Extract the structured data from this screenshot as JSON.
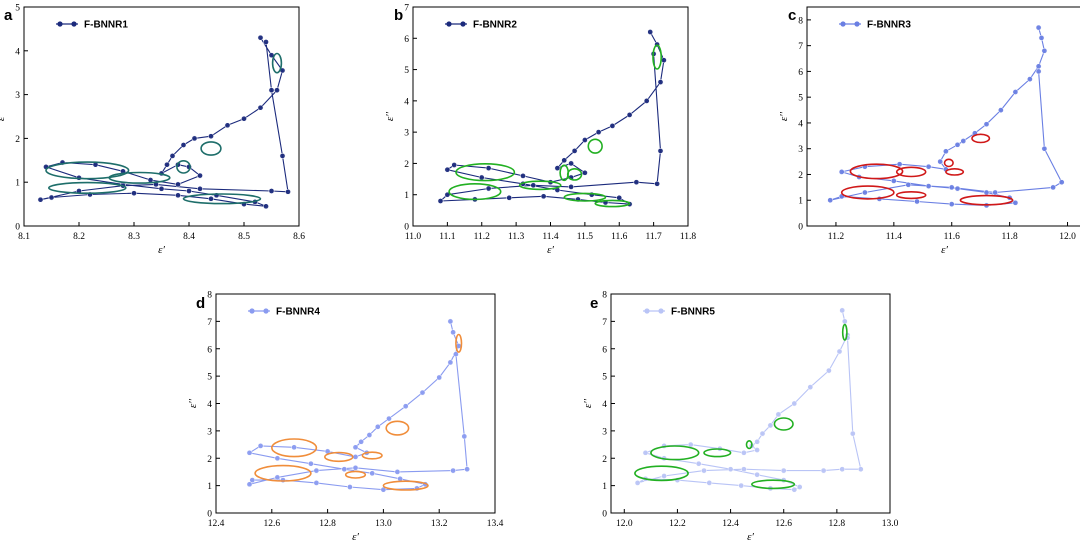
{
  "chart_data": [
    {
      "label": "a",
      "type": "line",
      "legend": "F-BNNR1",
      "xlabel": "ε′",
      "ylabel": "ε′′",
      "xlim": [
        8.1,
        8.6
      ],
      "ylim": [
        0,
        5
      ],
      "xticks": [
        "8.1",
        "8.2",
        "8.3",
        "8.4",
        "8.5",
        "8.6"
      ],
      "yticks": [
        "0",
        "1",
        "2",
        "3",
        "4",
        "5"
      ],
      "color": "#1b2a7c",
      "ring_color": "#1e6e6a",
      "x": [
        8.53,
        8.55,
        8.57,
        8.56,
        8.53,
        8.5,
        8.47,
        8.44,
        8.41,
        8.39,
        8.37,
        8.36,
        8.35,
        8.38,
        8.4,
        8.42,
        8.38,
        8.33,
        8.28,
        8.23,
        8.17,
        8.14,
        8.2,
        8.28,
        8.35,
        8.4,
        8.45,
        8.52,
        8.54,
        8.5,
        8.44,
        8.38,
        8.3,
        8.22,
        8.15,
        8.13,
        8.2,
        8.28,
        8.34,
        8.42,
        8.55,
        8.58,
        8.57,
        8.55,
        8.54
      ],
      "y": [
        4.3,
        3.9,
        3.55,
        3.1,
        2.7,
        2.45,
        2.3,
        2.05,
        2.0,
        1.85,
        1.6,
        1.4,
        1.2,
        1.4,
        1.35,
        1.15,
        0.95,
        1.05,
        1.25,
        1.4,
        1.45,
        1.35,
        1.1,
        0.95,
        0.85,
        0.8,
        0.7,
        0.55,
        0.45,
        0.5,
        0.62,
        0.7,
        0.75,
        0.72,
        0.65,
        0.6,
        0.8,
        0.92,
        0.95,
        0.85,
        0.8,
        0.78,
        1.6,
        3.1,
        4.2
      ],
      "rings": [
        [
          8.56,
          3.72,
          0.008,
          0.22
        ],
        [
          8.44,
          1.77,
          0.018,
          0.15
        ],
        [
          8.215,
          1.27,
          0.075,
          0.19
        ],
        [
          8.31,
          1.1,
          0.055,
          0.12
        ],
        [
          8.215,
          0.87,
          0.07,
          0.12
        ],
        [
          8.46,
          0.62,
          0.07,
          0.11
        ],
        [
          8.39,
          1.35,
          0.012,
          0.14
        ]
      ]
    },
    {
      "label": "b",
      "type": "line",
      "legend": "F-BNNR2",
      "xlabel": "ε′",
      "ylabel": "ε′′",
      "xlim": [
        11.0,
        11.8
      ],
      "ylim": [
        0,
        7
      ],
      "xticks": [
        "11.0",
        "11.1",
        "11.2",
        "11.3",
        "11.4",
        "11.5",
        "11.6",
        "11.7",
        "11.8"
      ],
      "yticks": [
        "0",
        "1",
        "2",
        "3",
        "4",
        "5",
        "6",
        "7"
      ],
      "color": "#1b2a7c",
      "ring_color": "#22b022",
      "x": [
        11.69,
        11.71,
        11.73,
        11.72,
        11.68,
        11.63,
        11.58,
        11.54,
        11.5,
        11.47,
        11.44,
        11.42,
        11.46,
        11.5,
        11.46,
        11.4,
        11.32,
        11.22,
        11.12,
        11.1,
        11.2,
        11.32,
        11.42,
        11.52,
        11.6,
        11.63,
        11.56,
        11.48,
        11.38,
        11.28,
        11.18,
        11.08,
        11.1,
        11.22,
        11.35,
        11.46,
        11.65,
        11.71,
        11.72,
        11.7
      ],
      "y": [
        6.2,
        5.8,
        5.3,
        4.6,
        4.0,
        3.55,
        3.2,
        3.0,
        2.75,
        2.4,
        2.1,
        1.85,
        2.0,
        1.7,
        1.55,
        1.4,
        1.6,
        1.85,
        1.95,
        1.8,
        1.55,
        1.35,
        1.15,
        1.0,
        0.9,
        0.7,
        0.75,
        0.85,
        0.95,
        0.9,
        0.85,
        0.8,
        1.0,
        1.2,
        1.3,
        1.25,
        1.4,
        1.35,
        2.4,
        5.5
      ],
      "rings": [
        [
          11.71,
          5.4,
          0.012,
          0.38
        ],
        [
          11.53,
          2.55,
          0.02,
          0.22
        ],
        [
          11.21,
          1.72,
          0.085,
          0.27
        ],
        [
          11.18,
          1.1,
          0.075,
          0.25
        ],
        [
          11.37,
          1.3,
          0.06,
          0.13
        ],
        [
          11.47,
          1.65,
          0.02,
          0.18
        ],
        [
          11.44,
          1.7,
          0.012,
          0.24
        ],
        [
          11.5,
          0.92,
          0.06,
          0.12
        ],
        [
          11.58,
          0.72,
          0.05,
          0.1
        ]
      ]
    },
    {
      "label": "c",
      "type": "line",
      "legend": "F-BNNR3",
      "xlabel": "ε′",
      "ylabel": "ε′′",
      "xlim": [
        11.1,
        12.05
      ],
      "ylim": [
        0,
        8.5
      ],
      "xticks": [
        "11.2",
        "11.4",
        "11.6",
        "11.8",
        "12.0"
      ],
      "yticks": [
        "0",
        "1",
        "2",
        "3",
        "4",
        "5",
        "6",
        "7",
        "8"
      ],
      "color": "#6a7fe3",
      "ring_color": "#d01818",
      "x": [
        11.9,
        11.91,
        11.92,
        11.9,
        11.87,
        11.82,
        11.77,
        11.72,
        11.68,
        11.64,
        11.62,
        11.58,
        11.56,
        11.58,
        11.52,
        11.42,
        11.3,
        11.22,
        11.28,
        11.4,
        11.52,
        11.62,
        11.72,
        11.8,
        11.82,
        11.72,
        11.6,
        11.48,
        11.35,
        11.22,
        11.18,
        11.3,
        11.45,
        11.6,
        11.75,
        11.95,
        11.98,
        11.92,
        11.9
      ],
      "y": [
        7.7,
        7.3,
        6.8,
        6.2,
        5.7,
        5.2,
        4.5,
        3.95,
        3.6,
        3.3,
        3.15,
        2.9,
        2.5,
        2.2,
        2.3,
        2.4,
        2.3,
        2.1,
        1.9,
        1.75,
        1.55,
        1.45,
        1.3,
        1.1,
        0.9,
        0.8,
        0.85,
        0.95,
        1.05,
        1.15,
        1.0,
        1.3,
        1.6,
        1.5,
        1.3,
        1.5,
        1.7,
        3.0,
        6.0
      ],
      "rings": [
        [
          11.7,
          3.4,
          0.03,
          0.16
        ],
        [
          11.34,
          2.12,
          0.09,
          0.28
        ],
        [
          11.46,
          2.1,
          0.05,
          0.18
        ],
        [
          11.59,
          2.45,
          0.015,
          0.14
        ],
        [
          11.61,
          2.1,
          0.03,
          0.12
        ],
        [
          11.31,
          1.3,
          0.09,
          0.25
        ],
        [
          11.46,
          1.2,
          0.05,
          0.13
        ],
        [
          11.72,
          1.0,
          0.09,
          0.18
        ]
      ]
    },
    {
      "label": "d",
      "type": "line",
      "legend": "F-BNNR4",
      "xlabel": "ε′",
      "ylabel": "ε′′",
      "xlim": [
        12.4,
        13.4
      ],
      "ylim": [
        0,
        8
      ],
      "xticks": [
        "12.4",
        "12.6",
        "12.8",
        "13.0",
        "13.2",
        "13.4"
      ],
      "yticks": [
        "0",
        "1",
        "2",
        "3",
        "4",
        "5",
        "6",
        "7",
        "8"
      ],
      "color": "#8a9bf0",
      "ring_color": "#f08d3a",
      "x": [
        13.24,
        13.25,
        13.27,
        13.24,
        13.2,
        13.14,
        13.08,
        13.02,
        12.98,
        12.95,
        12.92,
        12.9,
        12.94,
        12.9,
        12.8,
        12.68,
        12.56,
        12.52,
        12.62,
        12.74,
        12.86,
        12.96,
        13.06,
        13.15,
        13.12,
        13.0,
        12.88,
        12.76,
        12.64,
        12.53,
        12.52,
        12.62,
        12.76,
        12.9,
        13.05,
        13.25,
        13.3,
        13.29,
        13.26
      ],
      "y": [
        7.0,
        6.6,
        6.1,
        5.5,
        4.95,
        4.4,
        3.9,
        3.45,
        3.15,
        2.85,
        2.6,
        2.4,
        2.2,
        2.05,
        2.25,
        2.4,
        2.45,
        2.2,
        2.0,
        1.8,
        1.6,
        1.45,
        1.25,
        1.05,
        0.9,
        0.85,
        0.95,
        1.1,
        1.2,
        1.2,
        1.05,
        1.3,
        1.55,
        1.65,
        1.5,
        1.55,
        1.6,
        2.8,
        5.8
      ],
      "rings": [
        [
          13.27,
          6.2,
          0.01,
          0.32
        ],
        [
          13.05,
          3.1,
          0.04,
          0.25
        ],
        [
          12.68,
          2.38,
          0.08,
          0.32
        ],
        [
          12.64,
          1.45,
          0.1,
          0.28
        ],
        [
          12.84,
          2.05,
          0.05,
          0.16
        ],
        [
          12.96,
          2.1,
          0.035,
          0.12
        ],
        [
          12.9,
          1.4,
          0.035,
          0.12
        ],
        [
          13.08,
          1.0,
          0.08,
          0.16
        ]
      ]
    },
    {
      "label": "e",
      "type": "line",
      "legend": "F-BNNR5",
      "xlabel": "ε′",
      "ylabel": "ε′′",
      "xlim": [
        11.95,
        13.0
      ],
      "ylim": [
        0,
        8
      ],
      "xticks": [
        "12.0",
        "12.2",
        "12.4",
        "12.6",
        "12.8",
        "13.0"
      ],
      "yticks": [
        "0",
        "1",
        "2",
        "3",
        "4",
        "5",
        "6",
        "7",
        "8"
      ],
      "color": "#b9c4f6",
      "ring_color": "#22b022",
      "x": [
        12.82,
        12.83,
        12.84,
        12.81,
        12.77,
        12.7,
        12.64,
        12.58,
        12.55,
        12.52,
        12.5,
        12.48,
        12.5,
        12.45,
        12.36,
        12.25,
        12.15,
        12.08,
        12.15,
        12.28,
        12.4,
        12.5,
        12.6,
        12.66,
        12.64,
        12.55,
        12.44,
        12.32,
        12.2,
        12.08,
        12.05,
        12.15,
        12.3,
        12.45,
        12.6,
        12.75,
        12.82,
        12.89,
        12.86,
        12.84
      ],
      "y": [
        7.4,
        7.0,
        6.5,
        5.9,
        5.2,
        4.6,
        4.0,
        3.6,
        3.2,
        2.9,
        2.6,
        2.45,
        2.3,
        2.2,
        2.35,
        2.5,
        2.45,
        2.2,
        2.0,
        1.8,
        1.6,
        1.4,
        1.2,
        0.95,
        0.85,
        0.9,
        1.0,
        1.1,
        1.2,
        1.25,
        1.1,
        1.35,
        1.55,
        1.6,
        1.55,
        1.55,
        1.6,
        1.6,
        2.9,
        6.4
      ],
      "rings": [
        [
          12.83,
          6.6,
          0.008,
          0.28
        ],
        [
          12.6,
          3.25,
          0.035,
          0.22
        ],
        [
          12.19,
          2.2,
          0.09,
          0.25
        ],
        [
          12.35,
          2.2,
          0.05,
          0.14
        ],
        [
          12.47,
          2.5,
          0.01,
          0.14
        ],
        [
          12.14,
          1.45,
          0.1,
          0.26
        ],
        [
          12.56,
          1.05,
          0.08,
          0.15
        ]
      ]
    }
  ]
}
